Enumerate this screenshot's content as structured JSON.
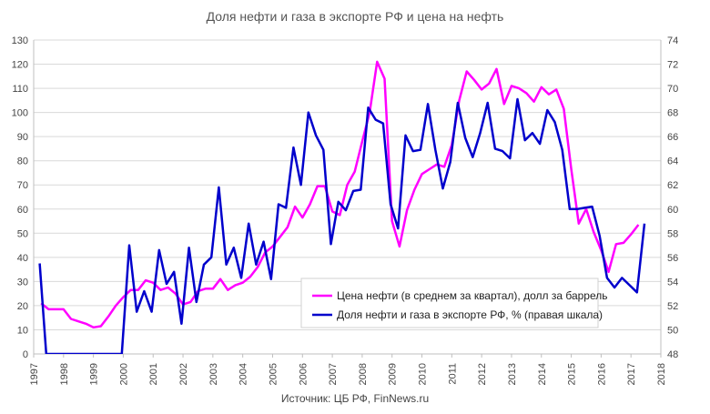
{
  "chart_data": {
    "type": "line",
    "title": "Доля нефти и газа в экспорте РФ и цена на нефть",
    "source": "Источник: ЦБ РФ, FinNews.ru",
    "x_ticks": [
      "1997",
      "1998",
      "1999",
      "2000",
      "2001",
      "2002",
      "2003",
      "2004",
      "2005",
      "2006",
      "2007",
      "2008",
      "2009",
      "2010",
      "2011",
      "2012",
      "2013",
      "2014",
      "2015",
      "2016",
      "2017",
      "2018"
    ],
    "xlim": [
      1997,
      2018
    ],
    "y_left": {
      "ylim": [
        0,
        130
      ],
      "ticks": [
        "0",
        "10",
        "20",
        "30",
        "40",
        "50",
        "60",
        "70",
        "80",
        "90",
        "100",
        "110",
        "120",
        "130"
      ]
    },
    "y_right": {
      "ylim": [
        48,
        74
      ],
      "ticks": [
        "48",
        "50",
        "52",
        "54",
        "56",
        "58",
        "60",
        "62",
        "64",
        "66",
        "68",
        "70",
        "72",
        "74"
      ]
    },
    "legend": {
      "position": "center-right"
    },
    "colors": {
      "oil_price": "#ff00ff",
      "share": "#0000cc",
      "grid": "#d9d9d9"
    },
    "series": [
      {
        "name": "Цена нефти (в среднем за квартал), долл за баррель",
        "axis": "left",
        "color": "#ff00ff",
        "x": [
          1997.25,
          1997.5,
          1997.75,
          1998.0,
          1998.25,
          1998.5,
          1998.75,
          1999.0,
          1999.25,
          1999.5,
          1999.75,
          2000.0,
          2000.25,
          2000.5,
          2000.75,
          2001.0,
          2001.25,
          2001.5,
          2001.75,
          2002.0,
          2002.25,
          2002.5,
          2002.75,
          2003.0,
          2003.25,
          2003.5,
          2003.75,
          2004.0,
          2004.25,
          2004.5,
          2004.75,
          2005.0,
          2005.25,
          2005.5,
          2005.75,
          2006.0,
          2006.25,
          2006.5,
          2006.75,
          2007.0,
          2007.25,
          2007.5,
          2007.75,
          2008.0,
          2008.25,
          2008.5,
          2008.75,
          2009.0,
          2009.25,
          2009.5,
          2009.75,
          2010.0,
          2010.25,
          2010.5,
          2010.75,
          2011.0,
          2011.25,
          2011.5,
          2011.75,
          2012.0,
          2012.25,
          2012.5,
          2012.75,
          2013.0,
          2013.25,
          2013.5,
          2013.75,
          2014.0,
          2014.25,
          2014.5,
          2014.75,
          2015.0,
          2015.25,
          2015.5,
          2015.75,
          2016.0,
          2016.25,
          2016.5,
          2016.75,
          2017.0,
          2017.25
        ],
        "values": [
          21,
          18.5,
          18.5,
          18.5,
          14.5,
          13.5,
          12.5,
          11,
          11.5,
          15.5,
          20,
          23.5,
          26.5,
          26.5,
          30.5,
          29.5,
          26.5,
          27.5,
          25,
          20.5,
          21.5,
          26,
          27,
          27,
          31,
          26.5,
          28.5,
          29.5,
          32,
          36,
          42,
          44.5,
          48.5,
          52.5,
          61,
          56.5,
          62,
          69.5,
          69.5,
          59,
          57.5,
          70,
          75.5,
          88,
          100,
          121,
          114,
          55,
          44.5,
          59.5,
          68,
          74.5,
          76.5,
          78.5,
          77.5,
          86.5,
          105,
          117,
          113.5,
          109.5,
          112,
          118,
          103.5,
          111,
          110,
          108,
          104.5,
          110.5,
          107.5,
          109.5,
          101.5,
          76.5,
          54,
          60,
          50.5,
          43,
          34,
          45.5,
          46,
          49.5,
          53.5
        ]
      },
      {
        "name": "Доля нефти и газа в экспорте РФ, % (правая шкала)",
        "axis": "right",
        "color": "#0000cc",
        "x": [
          1997.2,
          1997.42,
          1999.95,
          2000.2,
          2000.45,
          2000.7,
          2000.95,
          2001.2,
          2001.45,
          2001.7,
          2001.95,
          2002.2,
          2002.45,
          2002.7,
          2002.95,
          2003.2,
          2003.45,
          2003.7,
          2003.95,
          2004.2,
          2004.45,
          2004.7,
          2004.95,
          2005.2,
          2005.45,
          2005.7,
          2005.95,
          2006.2,
          2006.45,
          2006.7,
          2006.95,
          2007.2,
          2007.45,
          2007.7,
          2007.95,
          2008.2,
          2008.45,
          2008.7,
          2008.95,
          2009.2,
          2009.45,
          2009.7,
          2009.95,
          2010.2,
          2010.45,
          2010.7,
          2010.95,
          2011.2,
          2011.45,
          2011.7,
          2011.95,
          2012.2,
          2012.45,
          2012.7,
          2012.95,
          2013.2,
          2013.45,
          2013.7,
          2013.95,
          2014.2,
          2014.45,
          2014.7,
          2014.95,
          2015.2,
          2015.45,
          2015.7,
          2015.95,
          2016.2,
          2016.45,
          2016.7,
          2016.95,
          2017.2,
          2017.45
        ],
        "values": [
          55.5,
          48,
          48,
          57,
          51.5,
          53.2,
          51.5,
          56.6,
          53.8,
          54.8,
          50.5,
          56.8,
          52.3,
          55.4,
          56,
          61.8,
          55.4,
          56.8,
          54.3,
          58.8,
          55.4,
          57.3,
          54.2,
          60.4,
          60.1,
          65.1,
          62,
          68,
          66.1,
          64.9,
          57.1,
          60.6,
          59.9,
          61.5,
          61.6,
          68.4,
          67.4,
          67.1,
          60.4,
          58.4,
          66.1,
          64.8,
          64.9,
          68.7,
          64.9,
          61.7,
          63.9,
          68.8,
          65.9,
          64.3,
          66.3,
          68.8,
          65,
          64.8,
          64.2,
          69.1,
          65.7,
          66.3,
          65.4,
          68.2,
          67.2,
          64.9,
          60,
          60,
          60.1,
          60.2,
          57.8,
          54.3,
          53.5,
          54.3,
          53.7,
          53.1,
          58.8
        ]
      }
    ]
  }
}
